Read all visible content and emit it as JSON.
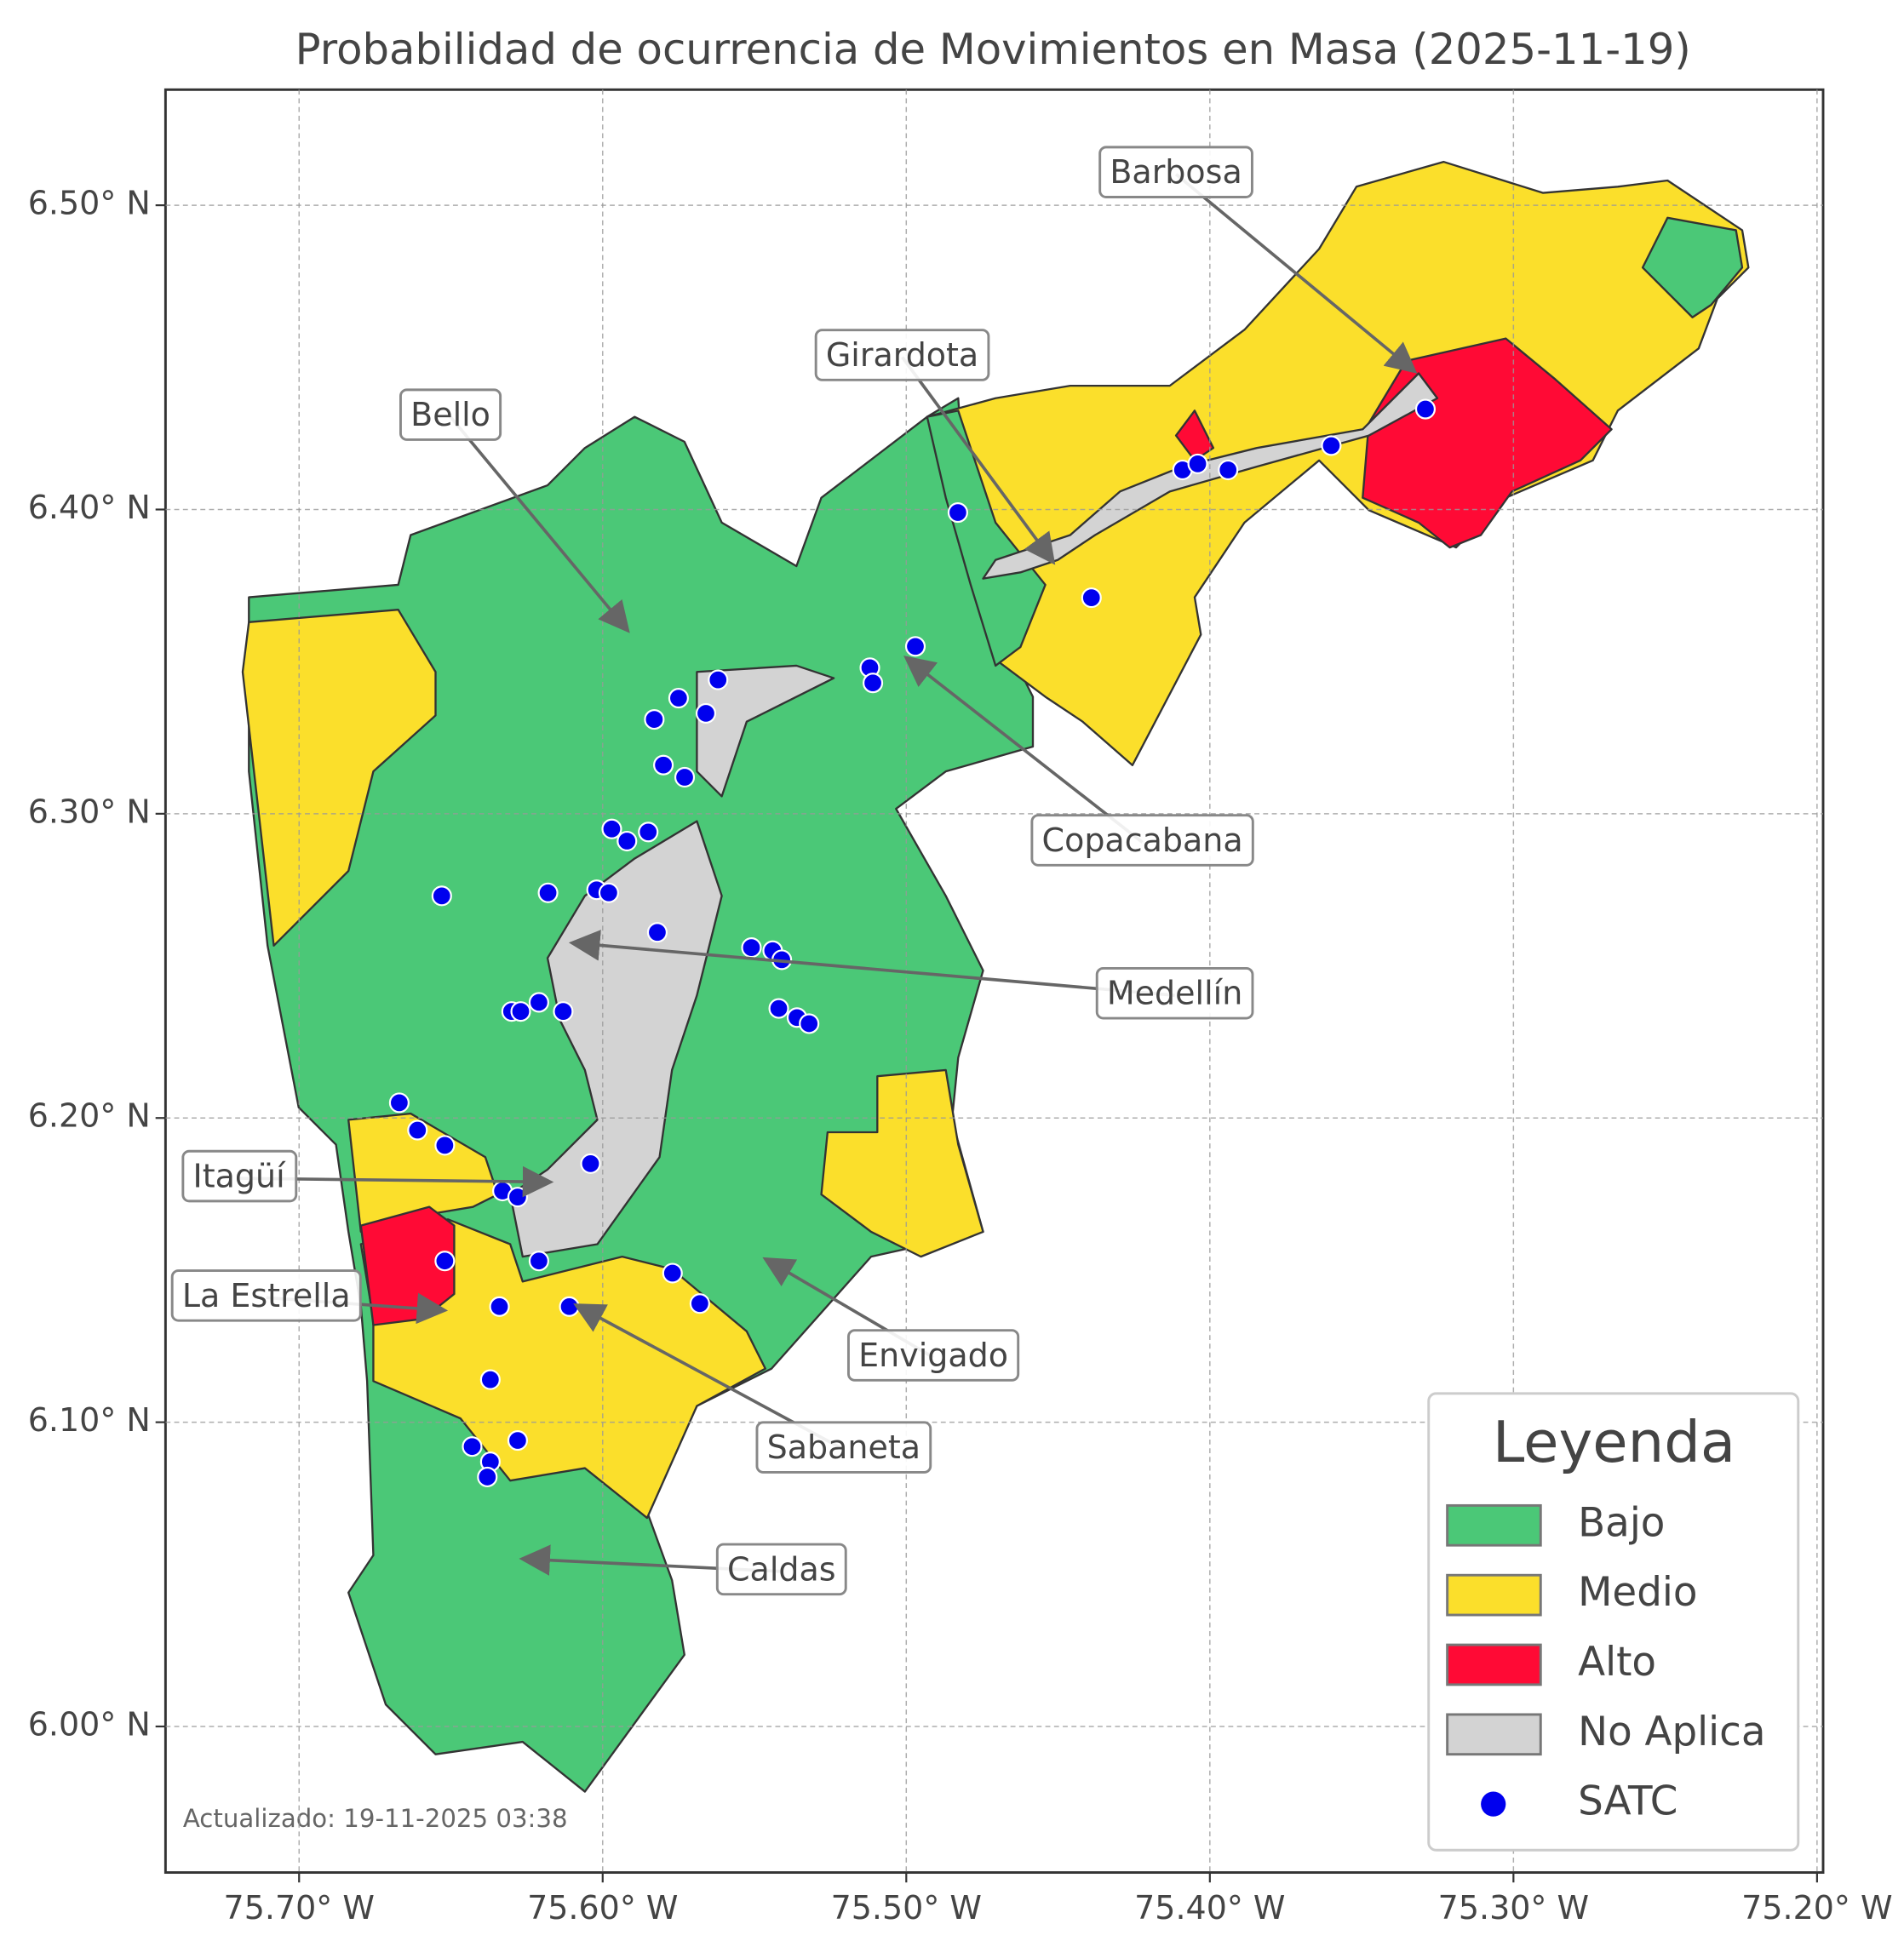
{
  "chart_data": {
    "type": "map",
    "title": "Probabilidad de ocurrencia de Movimientos en Masa (2025-11-19)",
    "footnote": "Actualizado: 19-11-2025 03:38",
    "xlim": [
      -75.744,
      -75.198
    ],
    "ylim": [
      5.952,
      6.538
    ],
    "xticks": [
      {
        "value": -75.7,
        "label": "75.70° W"
      },
      {
        "value": -75.6,
        "label": "75.60° W"
      },
      {
        "value": -75.5,
        "label": "75.50° W"
      },
      {
        "value": -75.4,
        "label": "75.40° W"
      },
      {
        "value": -75.3,
        "label": "75.30° W"
      },
      {
        "value": -75.2,
        "label": "75.20° W"
      }
    ],
    "yticks": [
      {
        "value": 6.0,
        "label": "6.00° N"
      },
      {
        "value": 6.1,
        "label": "6.10° N"
      },
      {
        "value": 6.2,
        "label": "6.20° N"
      },
      {
        "value": 6.3,
        "label": "6.30° N"
      },
      {
        "value": 6.4,
        "label": "6.40° N"
      },
      {
        "value": 6.5,
        "label": "6.50° N"
      }
    ],
    "grid": true,
    "legend": {
      "title": "Leyenda",
      "position": "lower right"
    },
    "regions": [
      {
        "name": "Bajo",
        "color": "#4bc877"
      },
      {
        "name": "Medio",
        "color": "#fbdf2b"
      },
      {
        "name": "Alto",
        "color": "#ff0a35"
      },
      {
        "name": "No Aplica",
        "color": "#d3d3d3"
      }
    ],
    "series": [
      {
        "name": "SATC",
        "color": "#0000ee",
        "x": [
          -75.329,
          -75.36,
          -75.409,
          -75.404,
          -75.394,
          -75.483,
          -75.439,
          -75.497,
          -75.512,
          -75.511,
          -75.562,
          -75.575,
          -75.566,
          -75.583,
          -75.58,
          -75.573,
          -75.597,
          -75.585,
          -75.592,
          -75.618,
          -75.602,
          -75.598,
          -75.653,
          -75.582,
          -75.551,
          -75.544,
          -75.541,
          -75.63,
          -75.627,
          -75.621,
          -75.613,
          -75.542,
          -75.536,
          -75.532,
          -75.667,
          -75.661,
          -75.652,
          -75.604,
          -75.633,
          -75.628,
          -75.652,
          -75.621,
          -75.577,
          -75.568,
          -75.634,
          -75.611,
          -75.637,
          -75.643,
          -75.628,
          -75.637,
          -75.638
        ],
        "y": [
          6.433,
          6.421,
          6.413,
          6.415,
          6.413,
          6.399,
          6.371,
          6.355,
          6.348,
          6.343,
          6.344,
          6.338,
          6.333,
          6.331,
          6.316,
          6.312,
          6.295,
          6.294,
          6.291,
          6.274,
          6.275,
          6.274,
          6.273,
          6.261,
          6.256,
          6.255,
          6.252,
          6.235,
          6.235,
          6.238,
          6.235,
          6.236,
          6.233,
          6.231,
          6.205,
          6.196,
          6.191,
          6.185,
          6.176,
          6.174,
          6.153,
          6.153,
          6.149,
          6.139,
          6.138,
          6.138,
          6.114,
          6.092,
          6.094,
          6.087,
          6.082
        ]
      }
    ],
    "annotations": [
      {
        "text": "Barbosa"
      },
      {
        "text": "Girardota"
      },
      {
        "text": "Bello"
      },
      {
        "text": "Copacabana"
      },
      {
        "text": "Medellín"
      },
      {
        "text": "Itagüí"
      },
      {
        "text": "La Estrella"
      },
      {
        "text": "Envigado"
      },
      {
        "text": "Sabaneta"
      },
      {
        "text": "Caldas"
      }
    ]
  }
}
